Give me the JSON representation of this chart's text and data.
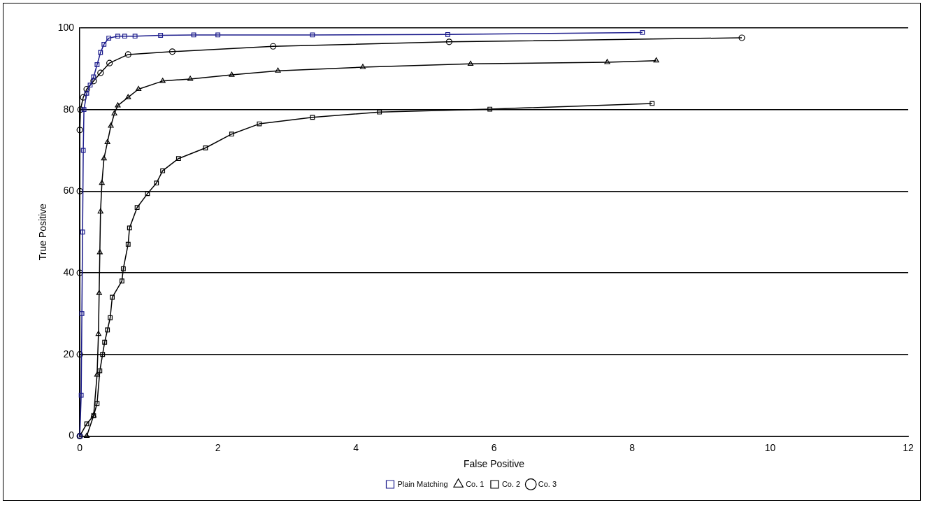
{
  "chart_data": {
    "type": "line",
    "xlabel": "False Positive",
    "ylabel": "True Positive",
    "xlim": [
      0,
      12
    ],
    "xticks": [
      0,
      2,
      4,
      6,
      8,
      10,
      12
    ],
    "ylim": [
      0,
      100
    ],
    "yticks": [
      0,
      20,
      40,
      60,
      80,
      100
    ],
    "grid": "y",
    "legend": "bottom",
    "series": [
      {
        "name": "Plain Matching",
        "color": "#1c1c8c",
        "marker": "square",
        "x": [
          0,
          0.02,
          0.03,
          0.04,
          0.05,
          0.06,
          0.1,
          0.15,
          0.2,
          0.25,
          0.3,
          0.35,
          0.42,
          0.55,
          0.65,
          0.8,
          1.17,
          1.65,
          2.0,
          3.37,
          5.33,
          8.15
        ],
        "values": [
          0,
          10,
          30,
          50,
          70,
          80,
          84,
          86,
          88,
          91,
          94,
          96,
          97.5,
          98,
          98,
          98,
          98.2,
          98.3,
          98.3,
          98.3,
          98.4,
          98.9
        ]
      },
      {
        "name": "Co. 1",
        "color": "#000000",
        "marker": "triangle",
        "x": [
          0.1,
          0.2,
          0.25,
          0.27,
          0.28,
          0.29,
          0.3,
          0.32,
          0.35,
          0.4,
          0.45,
          0.5,
          0.55,
          0.7,
          0.85,
          1.2,
          1.6,
          2.2,
          2.87,
          4.1,
          5.66,
          7.64,
          8.35
        ],
        "values": [
          0,
          5,
          15,
          25,
          35,
          45,
          55,
          62,
          68,
          72,
          76,
          79,
          81,
          83,
          85,
          87,
          87.5,
          88.5,
          89.5,
          90.4,
          91.2,
          91.6,
          92
        ]
      },
      {
        "name": "Co. 2",
        "color": "#000000",
        "marker": "square",
        "x": [
          0,
          0.1,
          0.2,
          0.25,
          0.29,
          0.33,
          0.36,
          0.4,
          0.44,
          0.47,
          0.61,
          0.63,
          0.7,
          0.72,
          0.83,
          0.98,
          1.11,
          1.2,
          1.43,
          1.82,
          2.2,
          2.6,
          3.37,
          4.34,
          5.94,
          8.29
        ],
        "values": [
          0,
          3,
          5,
          8,
          16,
          20,
          23,
          26,
          29,
          34,
          38,
          41,
          47,
          51,
          56,
          59.4,
          62,
          65,
          68,
          70.6,
          74,
          76.5,
          78.1,
          79.4,
          80.1,
          81.5
        ]
      },
      {
        "name": "Co. 3",
        "color": "#000000",
        "marker": "circle",
        "x": [
          0,
          0,
          0,
          0,
          0,
          0.01,
          0.05,
          0.1,
          0.2,
          0.3,
          0.43,
          0.7,
          1.34,
          2.8,
          5.35,
          9.59
        ],
        "values": [
          0,
          20,
          40,
          60,
          75,
          80,
          83,
          85,
          87,
          89,
          91.4,
          93.5,
          94.2,
          95.5,
          96.6,
          97.6
        ]
      }
    ]
  }
}
